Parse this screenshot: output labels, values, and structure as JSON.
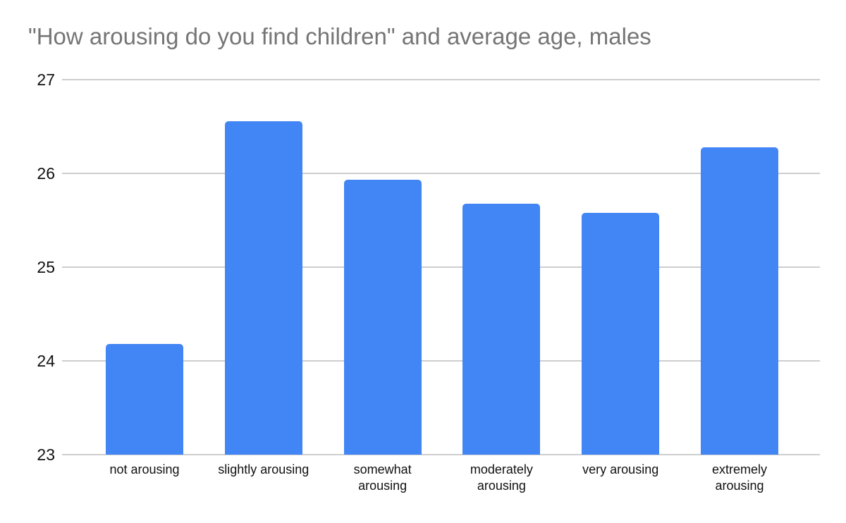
{
  "chart_data": {
    "type": "bar",
    "title": "\"How arousing do you find children\" and average age, males",
    "categories": [
      "not arousing",
      "slightly arousing",
      "somewhat arousing",
      "moderately arousing",
      "very arousing",
      "extremely arousing"
    ],
    "values": [
      24.18,
      26.56,
      25.93,
      25.68,
      25.58,
      26.28
    ],
    "yticks": [
      23,
      24,
      25,
      26,
      27
    ],
    "ylim": [
      23,
      27
    ],
    "xlabel": "",
    "ylabel": "",
    "grid": true,
    "legend": "none",
    "colors": {
      "bar": "#4285f4",
      "title": "#757575",
      "tick_labels": "#111111",
      "gridline": "#cecece",
      "background": "#ffffff"
    }
  }
}
